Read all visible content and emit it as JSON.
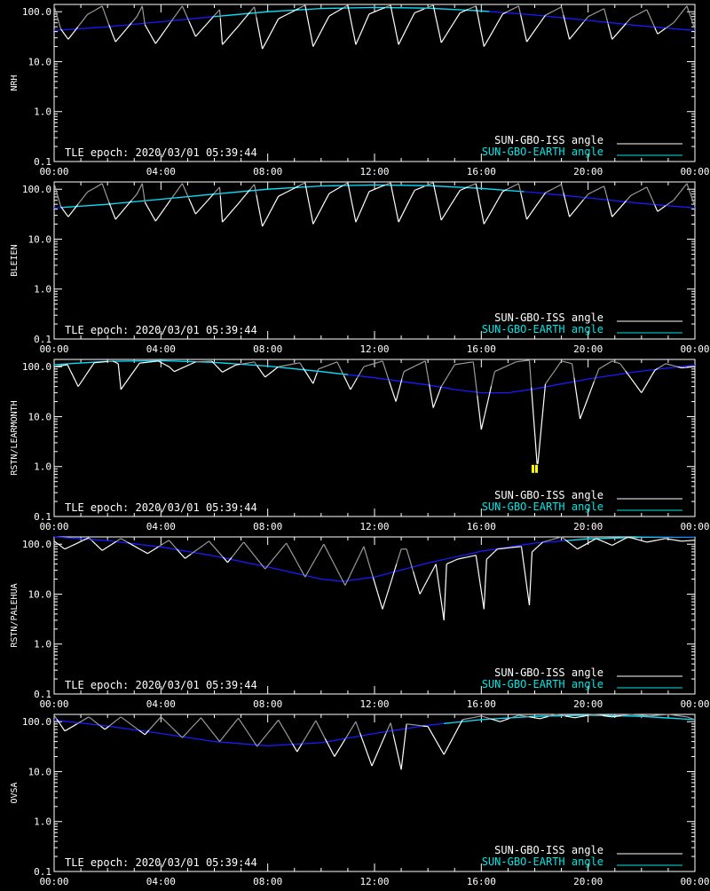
{
  "page": {
    "background": "#000000",
    "foreground": "#ffffff"
  },
  "colors": {
    "iss": "#ffffff",
    "earth_day": "#00e5e5",
    "earth_night": "#1a1aff",
    "shade": "#9a9a9a",
    "marker": "#ffff00"
  },
  "legend": {
    "iss_label": "SUN-GBO-ISS angle",
    "earth_label": "SUN-GBO-EARTH angle"
  },
  "epoch_label": "TLE epoch: 2020/03/01 05:39:44",
  "chart_data": [
    {
      "type": "line",
      "station": "NRH",
      "xlabel": "",
      "ylabel": "NRH",
      "x_unit": "hours",
      "xlim": [
        0,
        24
      ],
      "x_ticks": [
        "00:00",
        "04:00",
        "08:00",
        "12:00",
        "16:00",
        "20:00",
        "00:00"
      ],
      "y_scale": "log",
      "ylim": [
        0.1,
        140
      ],
      "y_ticks": [
        "100.0",
        "10.0",
        "1.0",
        "0.1"
      ],
      "series": [
        {
          "name": "SUN-GBO-EARTH angle",
          "x": [
            0,
            2,
            4,
            6,
            8,
            10,
            12,
            14,
            16,
            18,
            20,
            22,
            24
          ],
          "values": [
            42,
            50,
            63,
            80,
            100,
            116,
            122,
            118,
            104,
            86,
            67,
            52,
            42
          ],
          "day_x_range": [
            6.0,
            16.3
          ]
        },
        {
          "name": "SUN-GBO-ISS angle",
          "x": [
            0,
            0.25,
            0.53,
            1.25,
            1.8,
            2.05,
            2.3,
            3.1,
            3.3,
            3.4,
            3.8,
            4.55,
            4.8,
            5.3,
            6.2,
            6.3,
            6.85,
            7.5,
            7.8,
            8.4,
            9.4,
            9.7,
            10.3,
            11.0,
            11.3,
            11.8,
            12.6,
            12.9,
            13.5,
            14.2,
            14.5,
            15.2,
            15.8,
            16.1,
            16.8,
            17.4,
            17.7,
            18.4,
            19.0,
            19.3,
            20.0,
            20.6,
            20.9,
            21.6,
            22.2,
            22.6,
            23.2,
            23.7,
            24
          ],
          "values": [
            130,
            45,
            28,
            88,
            130,
            55,
            25,
            80,
            130,
            55,
            23,
            85,
            130,
            32,
            110,
            22,
            48,
            125,
            18,
            72,
            135,
            20,
            82,
            135,
            22,
            90,
            135,
            22,
            95,
            135,
            24,
            95,
            130,
            20,
            90,
            130,
            25,
            85,
            125,
            28,
            80,
            115,
            28,
            75,
            110,
            36,
            60,
            130,
            45
          ]
        }
      ]
    },
    {
      "type": "line",
      "station": "BLEIEN",
      "xlabel": "",
      "ylabel": "BLEIEN",
      "x_unit": "hours",
      "xlim": [
        0,
        24
      ],
      "x_ticks": [
        "00:00",
        "04:00",
        "08:00",
        "12:00",
        "16:00",
        "20:00",
        "00:00"
      ],
      "y_scale": "log",
      "ylim": [
        0.1,
        140
      ],
      "y_ticks": [
        "100.0",
        "10.0",
        "1.0",
        "0.1"
      ],
      "series": [
        {
          "name": "SUN-GBO-EARTH angle",
          "x": [
            0,
            2,
            4,
            6,
            8,
            10,
            12,
            14,
            16,
            18,
            20,
            22,
            24
          ],
          "values": [
            42,
            50,
            63,
            80,
            100,
            116,
            122,
            118,
            104,
            86,
            67,
            52,
            42
          ],
          "day_x_range": [
            0.3,
            17.6
          ]
        },
        {
          "name": "SUN-GBO-ISS angle",
          "x": [
            0,
            0.25,
            0.53,
            1.25,
            1.8,
            2.05,
            2.3,
            3.1,
            3.3,
            3.4,
            3.8,
            4.55,
            4.8,
            5.3,
            6.2,
            6.3,
            6.85,
            7.5,
            7.8,
            8.4,
            9.4,
            9.7,
            10.3,
            11.0,
            11.3,
            11.8,
            12.6,
            12.9,
            13.5,
            14.2,
            14.5,
            15.2,
            15.8,
            16.1,
            16.8,
            17.4,
            17.7,
            18.4,
            19.0,
            19.3,
            20.0,
            20.6,
            20.9,
            21.6,
            22.2,
            22.6,
            23.2,
            23.7,
            24
          ],
          "values": [
            130,
            45,
            28,
            88,
            130,
            55,
            25,
            80,
            130,
            55,
            23,
            85,
            130,
            32,
            110,
            22,
            48,
            125,
            18,
            72,
            135,
            20,
            82,
            135,
            22,
            90,
            135,
            22,
            95,
            135,
            24,
            95,
            130,
            20,
            90,
            130,
            25,
            85,
            125,
            28,
            80,
            115,
            28,
            75,
            110,
            36,
            60,
            130,
            45
          ]
        }
      ]
    },
    {
      "type": "line",
      "station": "RSTN/LEARMONTH",
      "xlabel": "",
      "ylabel": "RSTN/LEARMONTH",
      "x_unit": "hours",
      "xlim": [
        0,
        24
      ],
      "x_ticks": [
        "00:00",
        "04:00",
        "08:00",
        "12:00",
        "16:00",
        "20:00",
        "00:00"
      ],
      "y_scale": "log",
      "ylim": [
        0.1,
        140
      ],
      "y_ticks": [
        "100.0",
        "10.0",
        "1.0",
        "0.1"
      ],
      "series": [
        {
          "name": "SUN-GBO-EARTH angle",
          "x": [
            0,
            2,
            4,
            6,
            8,
            10,
            12,
            14,
            15,
            16,
            17,
            18,
            20,
            22,
            24
          ],
          "values": [
            110,
            128,
            132,
            122,
            103,
            80,
            60,
            43,
            35,
            30,
            30,
            36,
            57,
            82,
            108
          ],
          "day_x_range": [
            0,
            11.0
          ]
        },
        {
          "name": "SUN-GBO-ISS angle",
          "x": [
            0,
            0.5,
            0.9,
            1.5,
            2.2,
            2.4,
            2.5,
            3.2,
            3.9,
            4.3,
            4.5,
            5.3,
            5.9,
            6.3,
            6.8,
            7.5,
            7.9,
            8.4,
            9.2,
            9.7,
            9.9,
            10.6,
            11.1,
            11.6,
            12.3,
            12.8,
            13.1,
            13.9,
            14.2,
            14.5,
            15.0,
            15.7,
            16.0,
            16.5,
            17.3,
            17.8,
            18.1,
            18.4,
            19.0,
            19.4,
            19.7,
            20.4,
            20.9,
            21.2,
            22.0,
            22.5,
            22.9,
            23.5,
            24
          ],
          "values": [
            100,
            110,
            40,
            120,
            130,
            115,
            35,
            118,
            130,
            100,
            80,
            125,
            130,
            78,
            108,
            125,
            62,
            100,
            120,
            46,
            90,
            125,
            35,
            100,
            130,
            20,
            80,
            130,
            15,
            40,
            110,
            125,
            5.5,
            80,
            125,
            135,
            0.9,
            45,
            130,
            115,
            9,
            90,
            130,
            115,
            30,
            85,
            115,
            95,
            100
          ]
        }
      ],
      "marker": {
        "x": 18.0,
        "y": 0.9,
        "shape": "square"
      }
    },
    {
      "type": "line",
      "station": "RSTN/PALEHUA",
      "xlabel": "",
      "ylabel": "RSTN/PALEHUA",
      "x_unit": "hours",
      "xlim": [
        0,
        24
      ],
      "x_ticks": [
        "00:00",
        "04:00",
        "08:00",
        "12:00",
        "16:00",
        "20:00",
        "00:00"
      ],
      "y_scale": "log",
      "ylim": [
        0.1,
        140
      ],
      "y_ticks": [
        "100.0",
        "10.0",
        "1.0",
        "0.1"
      ],
      "series": [
        {
          "name": "SUN-GBO-EARTH angle",
          "x": [
            0,
            2,
            4,
            6,
            8,
            10,
            10.8,
            12,
            14,
            16,
            18,
            20,
            22,
            24
          ],
          "values": [
            140,
            118,
            88,
            58,
            35,
            20,
            18,
            22,
            42,
            72,
            105,
            128,
            138,
            140
          ],
          "day_x_range": [
            19.2,
            24
          ]
        },
        {
          "name": "SUN-GBO-ISS angle",
          "x": [
            0,
            0.4,
            1.3,
            1.8,
            2.5,
            3.5,
            4.3,
            4.9,
            5.8,
            6.5,
            7.1,
            7.9,
            8.7,
            9.4,
            10.1,
            10.9,
            11.6,
            12.3,
            13.0,
            13.2,
            13.7,
            14.3,
            14.6,
            14.7,
            15.1,
            15.8,
            16.1,
            16.2,
            16.6,
            17.5,
            17.8,
            17.9,
            18.3,
            19.0,
            19.6,
            20.3,
            20.9,
            21.5,
            22.2,
            22.9,
            23.5,
            24
          ],
          "values": [
            115,
            80,
            135,
            75,
            130,
            65,
            120,
            52,
            115,
            43,
            110,
            32,
            105,
            22,
            100,
            15,
            90,
            5,
            80,
            80,
            10,
            40,
            3,
            40,
            50,
            60,
            5,
            50,
            80,
            90,
            6,
            70,
            110,
            140,
            80,
            130,
            95,
            140,
            110,
            130,
            115,
            120
          ]
        }
      ]
    },
    {
      "type": "line",
      "station": "OVSA",
      "xlabel": "",
      "ylabel": "OVSA",
      "x_unit": "hours",
      "xlim": [
        0,
        24
      ],
      "x_ticks": [
        "00:00",
        "04:00",
        "08:00",
        "12:00",
        "16:00",
        "20:00",
        "00:00"
      ],
      "y_scale": "log",
      "ylim": [
        0.1,
        140
      ],
      "y_ticks": [
        "100.0",
        "10.0",
        "1.0",
        "0.1"
      ],
      "series": [
        {
          "name": "SUN-GBO-EARTH angle",
          "x": [
            0,
            2,
            4,
            6,
            8,
            10,
            12,
            14,
            16,
            18,
            20,
            22,
            24
          ],
          "values": [
            108,
            82,
            58,
            40,
            33,
            38,
            58,
            85,
            110,
            128,
            135,
            128,
            110
          ],
          "day_x_range": [
            14.6,
            24
          ]
        },
        {
          "name": "SUN-GBO-ISS angle",
          "x": [
            0,
            0.4,
            1.3,
            1.9,
            2.5,
            3.4,
            4.0,
            4.8,
            5.5,
            6.2,
            6.9,
            7.6,
            8.4,
            9.1,
            9.8,
            10.5,
            11.3,
            11.9,
            12.6,
            13.0,
            13.2,
            14.0,
            14.6,
            15.3,
            16.0,
            16.7,
            17.4,
            18.2,
            18.8,
            19.5,
            20.2,
            20.9,
            21.6,
            22.3,
            23.0,
            23.7,
            24
          ],
          "values": [
            135,
            65,
            125,
            70,
            125,
            55,
            125,
            48,
            120,
            40,
            118,
            32,
            108,
            25,
            105,
            20,
            100,
            13,
            95,
            11,
            90,
            80,
            22,
            110,
            130,
            100,
            135,
            115,
            140,
            120,
            140,
            125,
            140,
            130,
            140,
            125,
            110
          ]
        }
      ]
    }
  ]
}
